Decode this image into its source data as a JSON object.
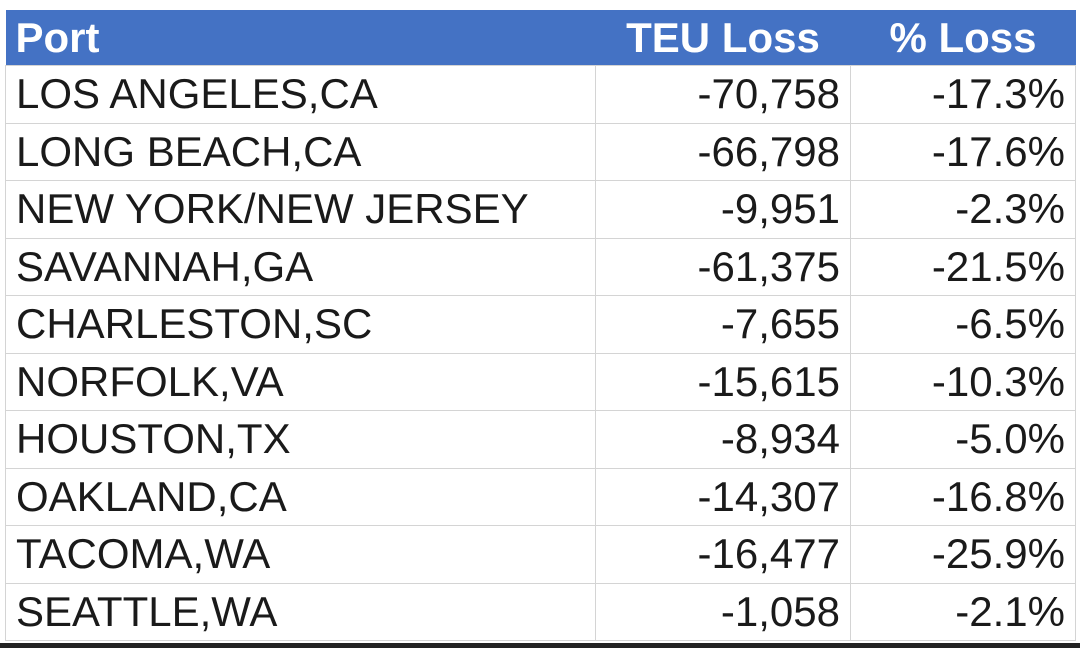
{
  "table": {
    "header": [
      "Port",
      "TEU Loss",
      "% Loss"
    ],
    "rows": [
      [
        "LOS ANGELES,CA",
        "-70,758",
        "-17.3%"
      ],
      [
        "LONG BEACH,CA",
        "-66,798",
        "-17.6%"
      ],
      [
        "NEW YORK/NEW JERSEY",
        "-9,951",
        "-2.3%"
      ],
      [
        "SAVANNAH,GA",
        "-61,375",
        "-21.5%"
      ],
      [
        "CHARLESTON,SC",
        "-7,655",
        "-6.5%"
      ],
      [
        "NORFOLK,VA",
        "-15,615",
        "-10.3%"
      ],
      [
        "HOUSTON,TX",
        "-8,934",
        "-5.0%"
      ],
      [
        "OAKLAND,CA",
        "-14,307",
        "-16.8%"
      ],
      [
        "TACOMA,WA",
        "-16,477",
        "-25.9%"
      ],
      [
        "SEATTLE,WA",
        "-1,058",
        "-2.1%"
      ]
    ]
  }
}
